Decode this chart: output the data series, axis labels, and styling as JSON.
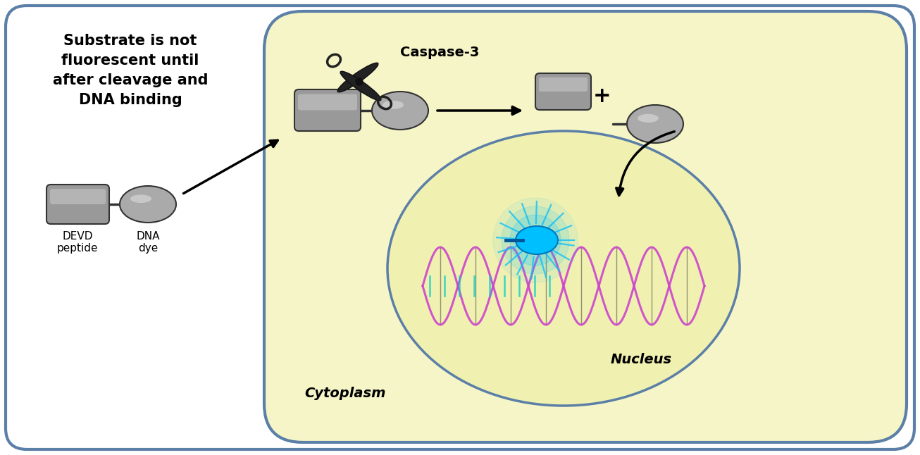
{
  "bg_color": "#ffffff",
  "outer_rect_color": "#5b7fa6",
  "cell_bg": "#f5f5c8",
  "nucleus_bg": "#f0f0b0",
  "text_left_title": "Substrate is not\nfluorescent until\nafter cleavage and\nDNA binding",
  "text_devd": "DEVD\npeptide",
  "text_dna": "DNA\ndye",
  "text_caspase": "Caspase-3",
  "text_cytoplasm": "Cytoplasm",
  "text_nucleus": "Nucleus",
  "text_plus": "+",
  "gray_dark": "#555555",
  "gray_light": "#aaaaaa",
  "gray_mid": "#888888",
  "cyan_color": "#00bfff",
  "purple_color": "#cc44cc",
  "teal_color": "#00cccc",
  "arrow_color": "#111111",
  "n_waves": 4
}
